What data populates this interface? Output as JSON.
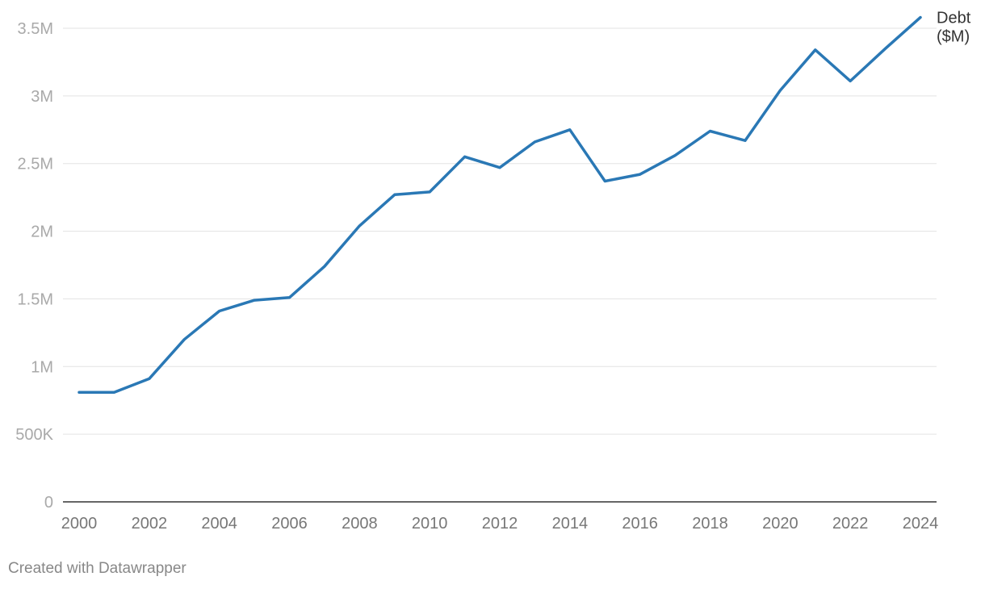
{
  "chart_data": {
    "type": "line",
    "title": "",
    "xlabel": "",
    "ylabel": "",
    "x": [
      2000,
      2001,
      2002,
      2003,
      2004,
      2005,
      2006,
      2007,
      2008,
      2009,
      2010,
      2011,
      2012,
      2013,
      2014,
      2015,
      2016,
      2017,
      2018,
      2019,
      2020,
      2021,
      2022,
      2023,
      2024
    ],
    "series": [
      {
        "name": "Debt ($M)",
        "label_lines": [
          "Debt",
          "($M)"
        ],
        "color": "#2a78b5",
        "values": [
          810000,
          810000,
          910000,
          1200000,
          1410000,
          1490000,
          1510000,
          1740000,
          2040000,
          2270000,
          2290000,
          2550000,
          2470000,
          2660000,
          2750000,
          2370000,
          2420000,
          2560000,
          2740000,
          2670000,
          3040000,
          3340000,
          3110000,
          3350000,
          3580000
        ]
      }
    ],
    "ylim": [
      0,
      3500000
    ],
    "y_ticks": [
      {
        "value": 0,
        "label": "0"
      },
      {
        "value": 500000,
        "label": "500K"
      },
      {
        "value": 1000000,
        "label": "1M"
      },
      {
        "value": 1500000,
        "label": "1.5M"
      },
      {
        "value": 2000000,
        "label": "2M"
      },
      {
        "value": 2500000,
        "label": "2.5M"
      },
      {
        "value": 3000000,
        "label": "3M"
      },
      {
        "value": 3500000,
        "label": "3.5M"
      }
    ],
    "x_ticks": [
      "2000",
      "2002",
      "2004",
      "2006",
      "2008",
      "2010",
      "2012",
      "2014",
      "2016",
      "2018",
      "2020",
      "2022",
      "2024"
    ],
    "grid": true
  },
  "footer": {
    "credit": "Created with Datawrapper"
  }
}
